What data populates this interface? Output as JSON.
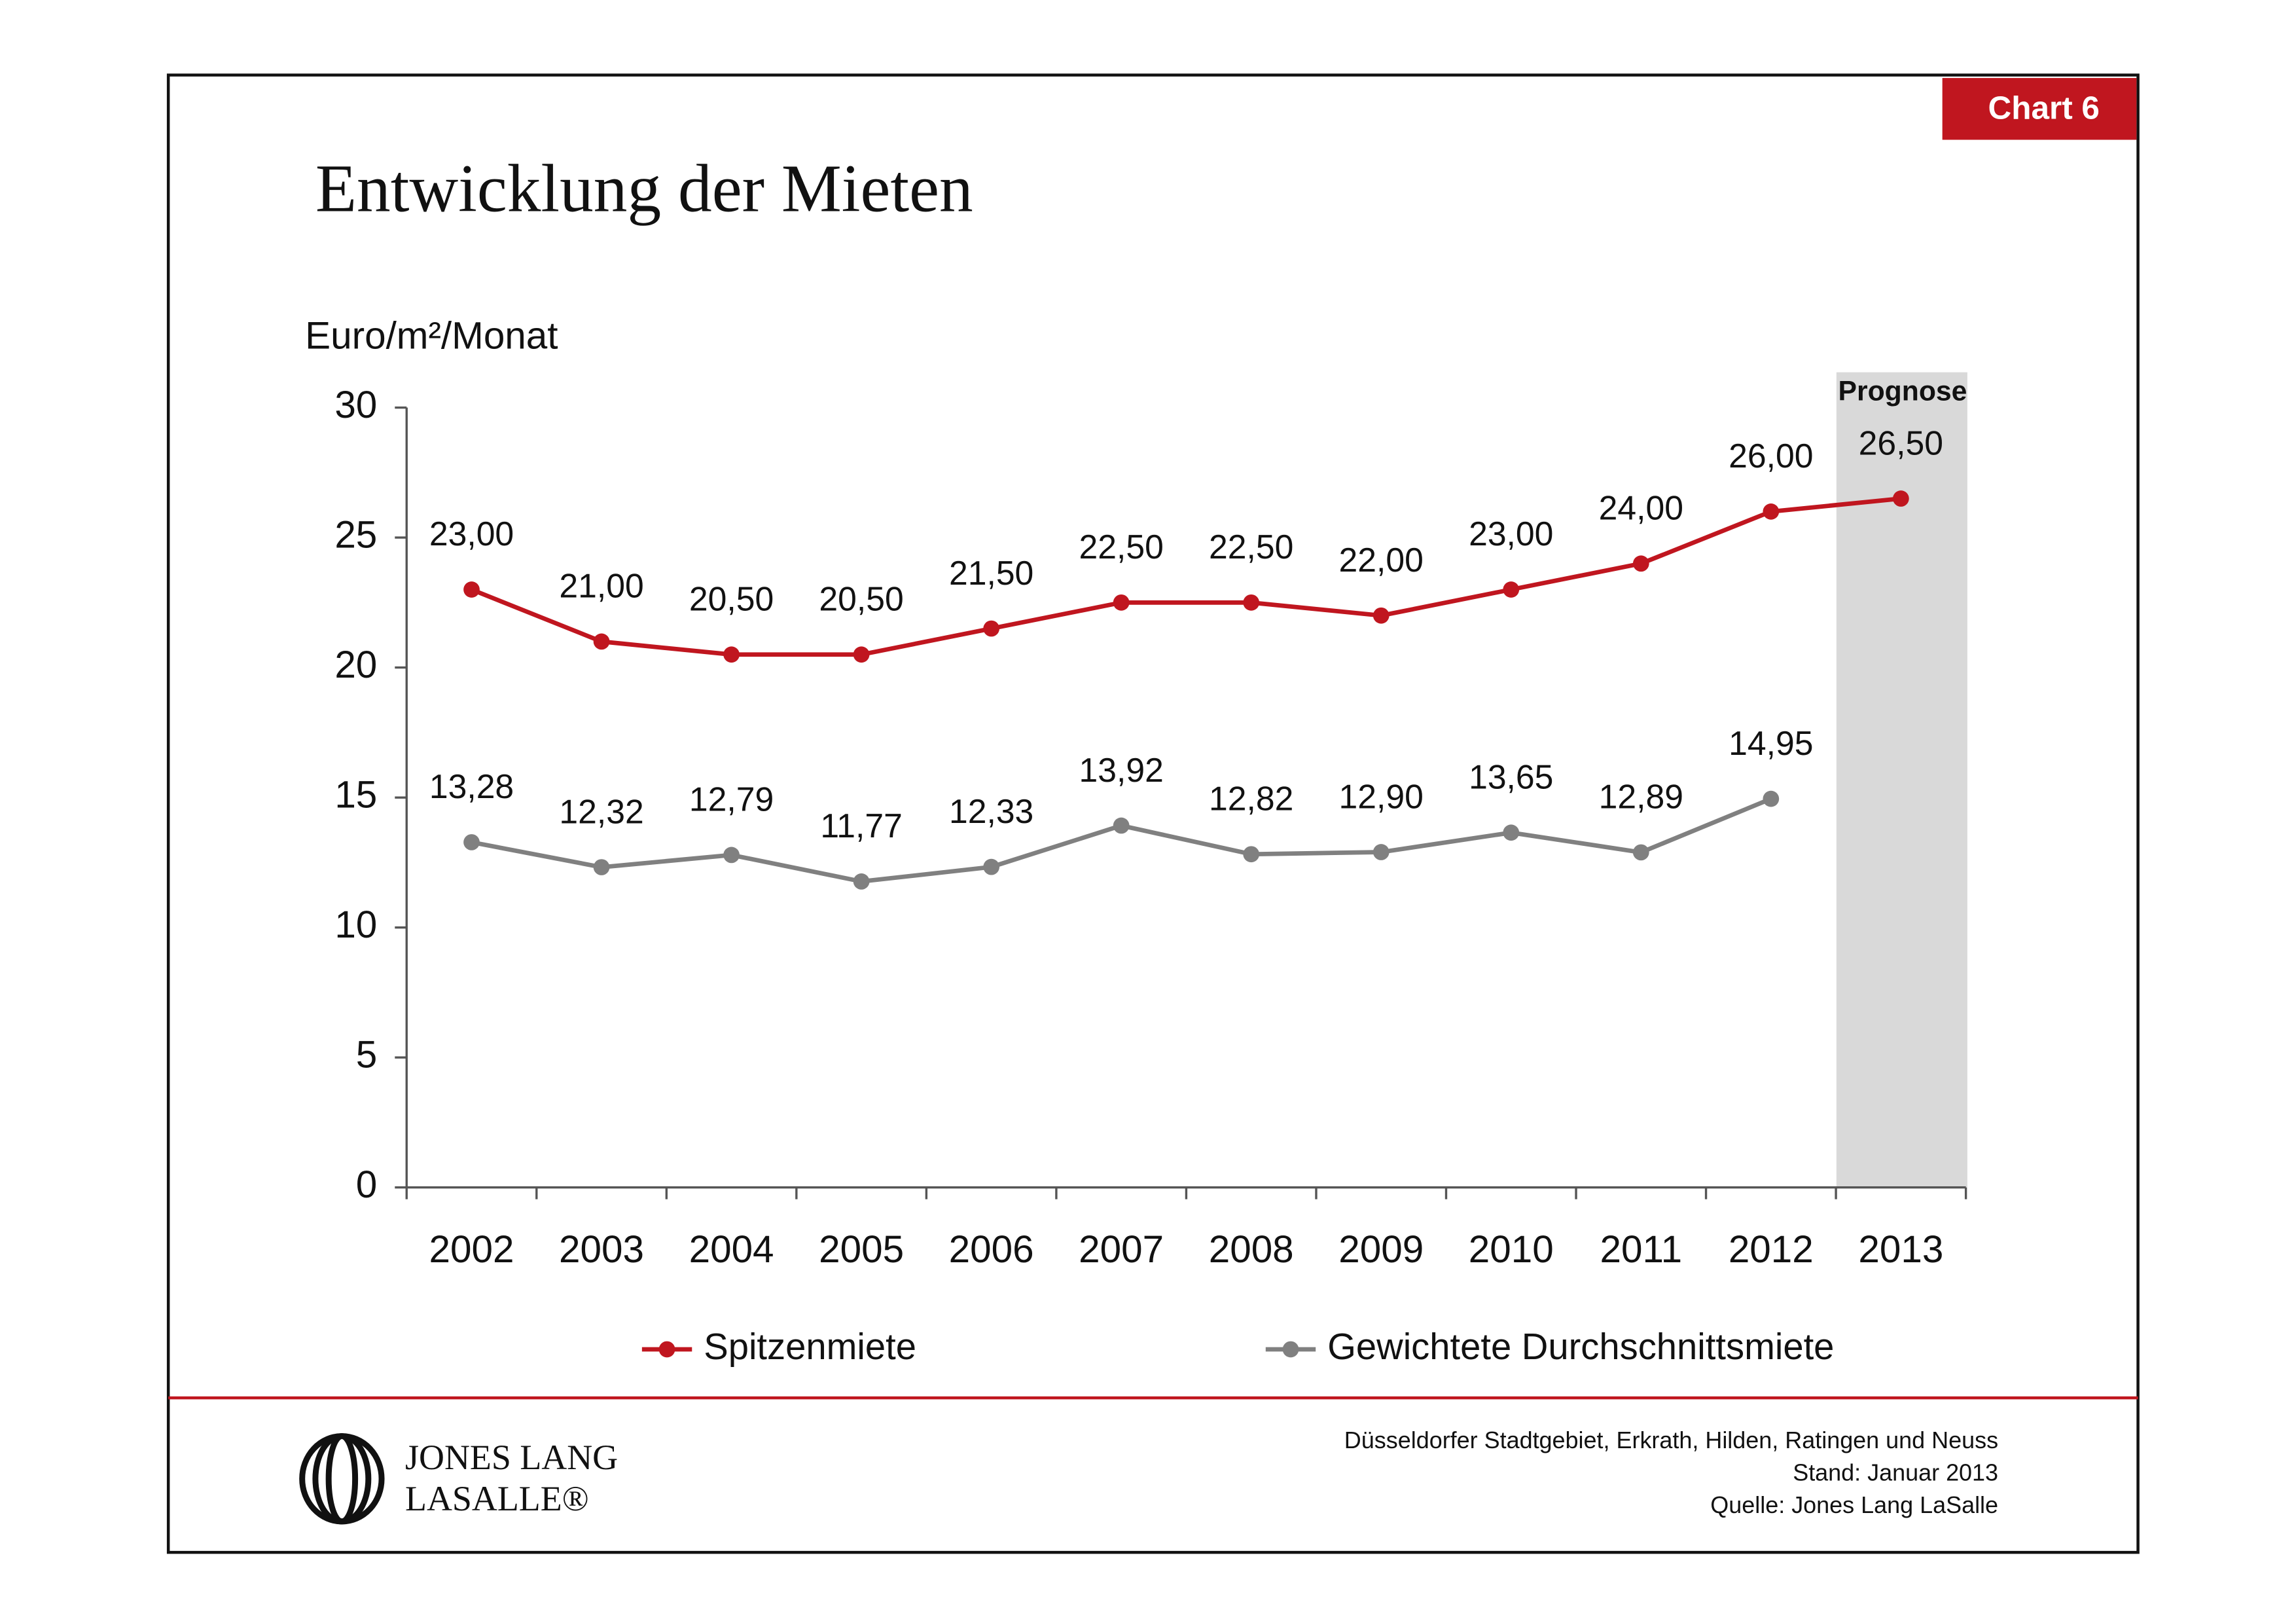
{
  "chart_data": {
    "type": "line",
    "badge": "Chart 6",
    "title": "Entwicklung der Mieten",
    "y_axis_label": "Euro/m²/Monat",
    "annotation": "Prognose",
    "categories": [
      "2002",
      "2003",
      "2004",
      "2005",
      "2006",
      "2007",
      "2008",
      "2009",
      "2010",
      "2011",
      "2012",
      "2013"
    ],
    "series": [
      {
        "name": "Spitzenmiete",
        "color": "#c0161f",
        "values": [
          23,
          21,
          20.5,
          20.5,
          21.5,
          22.5,
          22.5,
          22,
          23,
          24,
          26,
          26.5
        ],
        "value_labels": [
          "23,00",
          "21,00",
          "20,50",
          "20,50",
          "21,50",
          "22,50",
          "22,50",
          "22,00",
          "23,00",
          "24,00",
          "26,00",
          "26,50"
        ]
      },
      {
        "name": "Gewichtete Durchschnittsmiete",
        "color": "#808080",
        "values": [
          13.28,
          12.32,
          12.79,
          11.77,
          12.33,
          13.92,
          12.82,
          12.9,
          13.65,
          12.89,
          14.95,
          null
        ],
        "value_labels": [
          "13,28",
          "12,32",
          "12,79",
          "11,77",
          "12,33",
          "13,92",
          "12,82",
          "12,90",
          "13,65",
          "12,89",
          "14,95",
          null
        ]
      }
    ],
    "ylim": [
      0,
      30
    ],
    "yticks": [
      0,
      5,
      10,
      15,
      20,
      25,
      30
    ],
    "grid": false,
    "legend": "bottom",
    "footer": [
      "Düsseldorfer Stadtgebiet,  Erkrath, Hilden, Ratingen und Neuss",
      "Stand: Januar 2013",
      "Quelle: Jones Lang LaSalle"
    ],
    "logo": [
      "JONES LANG",
      "LASALLE®"
    ]
  }
}
